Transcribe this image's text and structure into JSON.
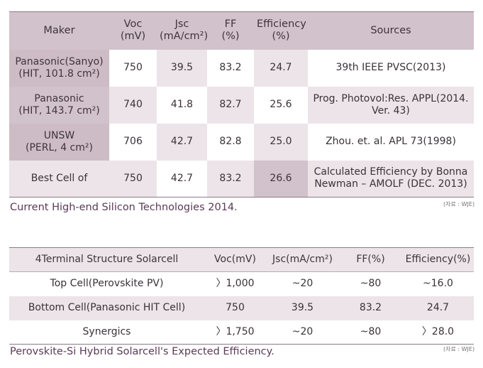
{
  "table1": {
    "headers": [
      "Maker",
      "Voc\n(mV)",
      "Jsc\n(mA/cm²)",
      "FF\n(%)",
      "Efficiency\n(%)",
      "Sources"
    ],
    "rows": [
      [
        "Panasonic(Sanyo)\n(HIT, 101.8 cm²)",
        "750",
        "39.5",
        "83.2",
        "24.7",
        "39th IEEE PVSC(2013)"
      ],
      [
        "Panasonic\n(HIT, 143.7 cm²)",
        "740",
        "41.8",
        "82.7",
        "25.6",
        "Prog. Photovol:Res. APPL(2014.\nVer. 43)"
      ],
      [
        "UNSW\n(PERL, 4 cm²)",
        "706",
        "42.7",
        "82.8",
        "25.0",
        "Zhou. et. al. APL 73(1998)"
      ],
      [
        "Best Cell of",
        "750",
        "42.7",
        "83.2",
        "26.6",
        "Calculated Efficiency by Bonna\nNewman – AMOLF (DEC. 2013)"
      ]
    ],
    "caption": "Current High-end Silicon Technologies 2014.",
    "source": "(자료 : WJE)"
  },
  "table2": {
    "headers": [
      "4Terminal Structure Solarcell",
      "Voc(mV)",
      "Jsc(mA/cm²)",
      "FF(%)",
      "Efficiency(%)"
    ],
    "rows": [
      [
        "Top Cell(Perovskite PV)",
        "〉1,000",
        "~20",
        "~80",
        "~16.0"
      ],
      [
        "Bottom Cell(Panasonic HIT Cell)",
        "750",
        "39.5",
        "83.2",
        "24.7"
      ],
      [
        "Synergics",
        "〉1,750",
        "~20",
        "~80",
        "〉28.0"
      ]
    ],
    "caption": "Perovskite-Si Hybrid Solarcell's Expected Efficiency.",
    "source": "(자료 : WJE)"
  }
}
